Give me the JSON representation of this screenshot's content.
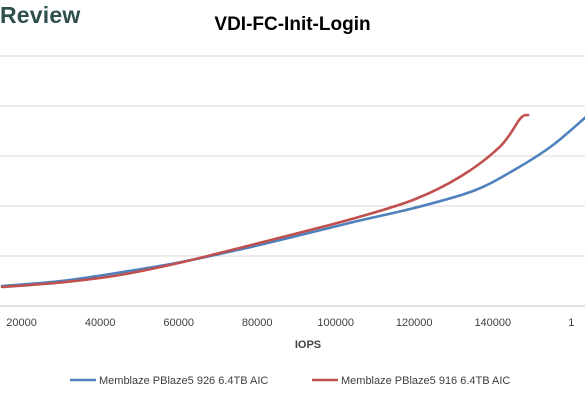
{
  "brand": "Review",
  "chart_data": {
    "type": "line",
    "title": "VDI-FC-Init-Login",
    "xlabel": "IOPS",
    "ylabel": "",
    "x_ticks": [
      "20000",
      "40000",
      "60000",
      "80000",
      "100000",
      "120000",
      "140000",
      "1"
    ],
    "xlim": [
      15000,
      164000
    ],
    "ylim": [
      0,
      6
    ],
    "grid": true,
    "legend_position": "bottom",
    "series": [
      {
        "name": "Memblaze PBlaze5 926 6.4TB AIC",
        "color": "#4f81bd",
        "points": [
          [
            15000,
            0.4
          ],
          [
            30000,
            0.5
          ],
          [
            45000,
            0.67
          ],
          [
            60000,
            0.87
          ],
          [
            75000,
            1.12
          ],
          [
            90000,
            1.4
          ],
          [
            105000,
            1.69
          ],
          [
            120000,
            1.96
          ],
          [
            135000,
            2.3
          ],
          [
            145000,
            2.7
          ],
          [
            155000,
            3.2
          ],
          [
            164000,
            3.8
          ]
        ]
      },
      {
        "name": "Memblaze PBlaze5 916 6.4TB AIC",
        "color": "#c0504d",
        "points": [
          [
            15000,
            0.38
          ],
          [
            30000,
            0.47
          ],
          [
            45000,
            0.62
          ],
          [
            60000,
            0.86
          ],
          [
            75000,
            1.15
          ],
          [
            90000,
            1.45
          ],
          [
            105000,
            1.76
          ],
          [
            120000,
            2.13
          ],
          [
            132000,
            2.6
          ],
          [
            142000,
            3.2
          ],
          [
            147000,
            3.75
          ],
          [
            149000,
            3.82
          ]
        ]
      }
    ]
  }
}
